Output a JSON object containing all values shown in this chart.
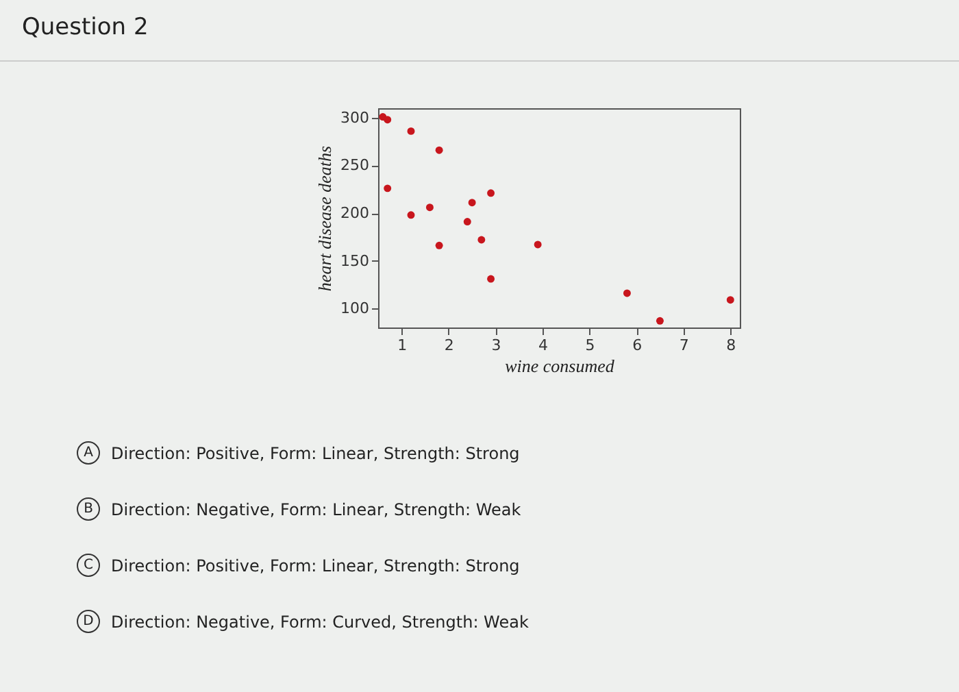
{
  "chart_data": {
    "type": "scatter",
    "title": "Question 2",
    "xlabel": "wine consumed",
    "ylabel": "heart disease deaths",
    "x": [
      0.6,
      0.7,
      1.2,
      1.8,
      0.7,
      1.6,
      1.2,
      1.8,
      2.4,
      2.5,
      2.9,
      2.7,
      2.9,
      3.9,
      5.8,
      6.5,
      8.0
    ],
    "series": [
      {
        "color": "#c8161d",
        "values": [
          301,
          298,
          286,
          266,
          226,
          206,
          198,
          166,
          191,
          211,
          221,
          172,
          131,
          167,
          116,
          87,
          109
        ]
      }
    ],
    "xlim": [
      0.5,
      8.2
    ],
    "ylim": [
      80,
      310
    ],
    "xticks": [
      1,
      2,
      3,
      4,
      5,
      6,
      7,
      8
    ],
    "yticks": [
      100,
      150,
      200,
      250,
      300
    ],
    "marker": "circle",
    "grid": false,
    "legend": false,
    "annotations": [
      "A",
      "Direction: Positive, Form: Linear, Strength: Strong",
      "B",
      "Direction: Negative, Form: Linear, Strength: Weak",
      "C",
      "Direction: Positive, Form: Linear, Strength: Strong",
      "D",
      "Direction: Negative, Form: Curved, Strength: Weak"
    ]
  }
}
